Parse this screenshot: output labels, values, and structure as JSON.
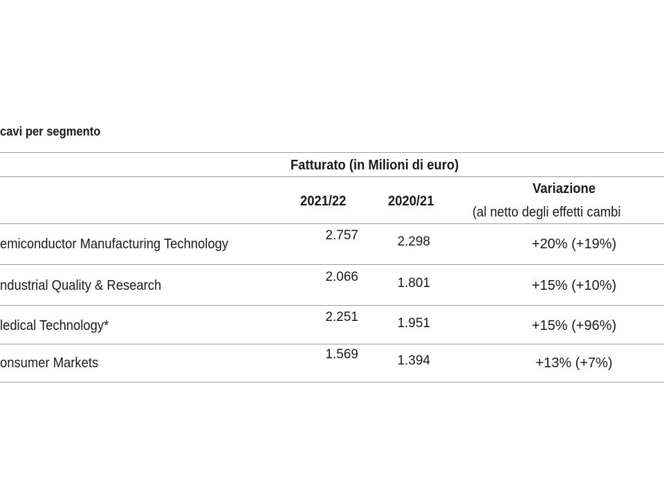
{
  "header": {
    "title": "cavi per segmento"
  },
  "table": {
    "group_header": "Fatturato (in Milioni di euro)",
    "columns": [
      "2021/22",
      "2020/21",
      "Variazione",
      "(al netto degli effetti cambi"
    ],
    "rows": [
      [
        "emiconductor Manufacturing Technology",
        "2.757",
        "2.298",
        "+20% (+19%)"
      ],
      [
        "ndustrial Quality & Research",
        "2.066",
        "1.801",
        "+15% (+10%)"
      ],
      [
        "ledical Technology*",
        "2.251",
        "1.951",
        "+15% (+96%)"
      ],
      [
        "onsumer Markets",
        "1.569",
        "1.394",
        "+13% (+7%)"
      ]
    ]
  }
}
